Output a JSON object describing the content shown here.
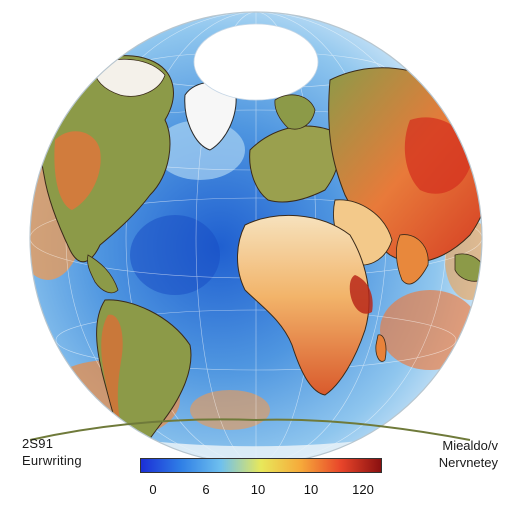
{
  "labels": {
    "left_line1": "2S91",
    "left_line2": "Eurwriting",
    "right_line1": "Miealdo/v",
    "right_line2": "Nervnetey"
  },
  "colorbar": {
    "ticks": [
      "0",
      "6",
      "10",
      "10",
      "120"
    ],
    "colors": [
      "#1b2fd6",
      "#2f7fe6",
      "#6fc0ee",
      "#e8e85a",
      "#f6a93a",
      "#e8452a",
      "#8a1010"
    ]
  },
  "colors": {
    "ocean_deep": "#1f5fd0",
    "ocean_mid": "#4f96e0",
    "ocean_light": "#b5daf3",
    "land_green": "#8c9a48",
    "land_orange": "#ef8a3c",
    "land_red": "#d93a22",
    "land_pale": "#f6e2bd",
    "ice": "#ffffff"
  }
}
